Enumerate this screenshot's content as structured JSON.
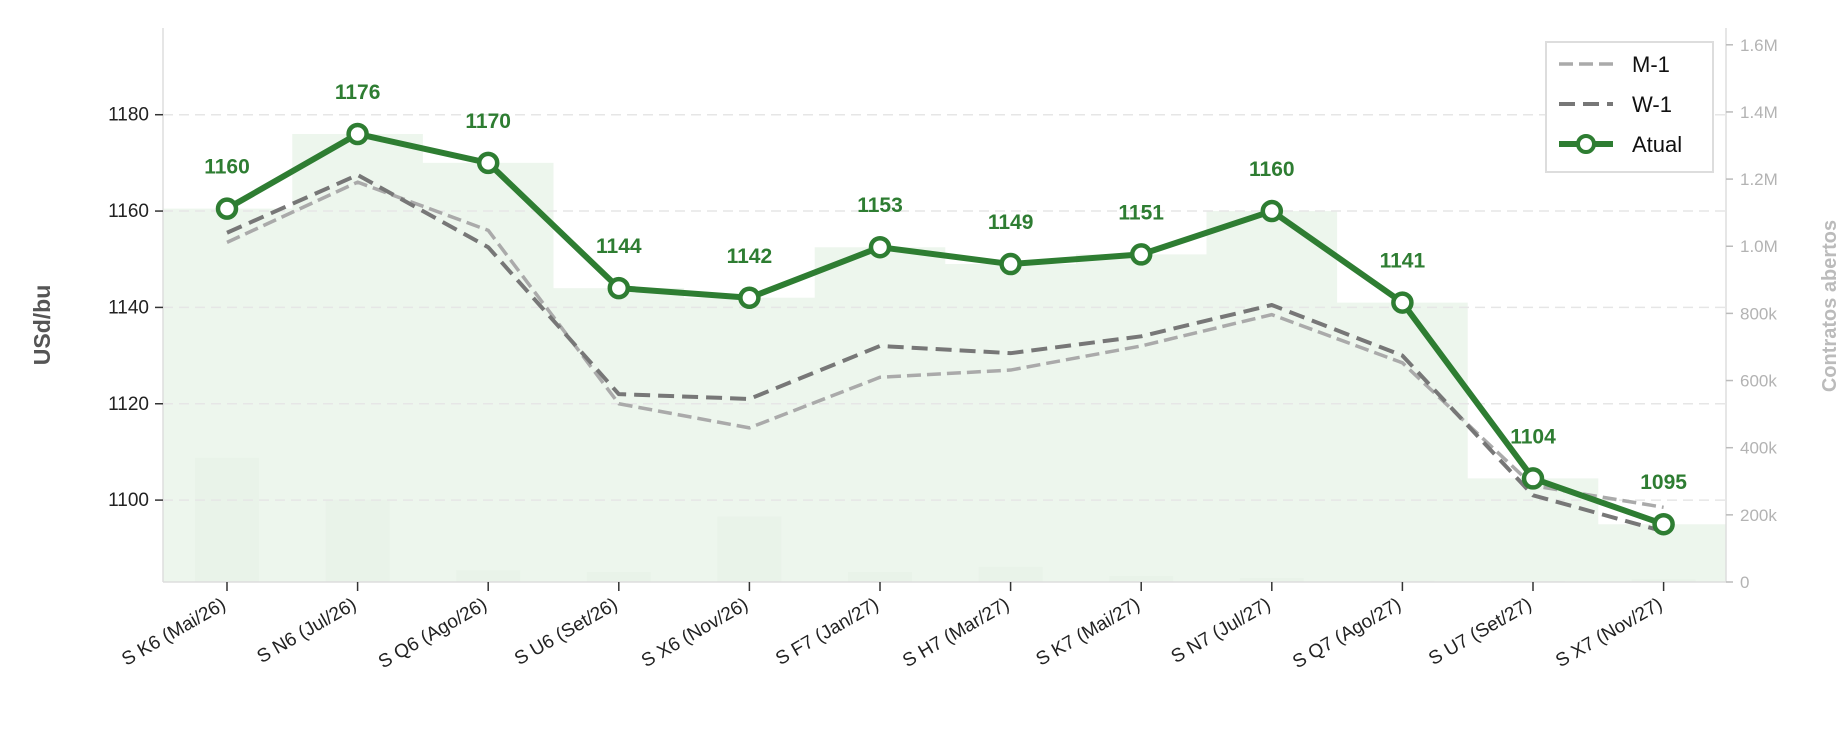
{
  "chart_data": {
    "type": "line",
    "categories": [
      "S K6 (Mai/26)",
      "S N6 (Jul/26)",
      "S Q6 (Ago/26)",
      "S U6 (Set/26)",
      "S X6 (Nov/26)",
      "S F7 (Jan/27)",
      "S H7 (Mar/27)",
      "S K7 (Mai/27)",
      "S N7 (Jul/27)",
      "S Q7 (Ago/27)",
      "S U7 (Set/27)",
      "S X7 (Nov/27)"
    ],
    "series": [
      {
        "name": "M-1",
        "values": [
          1153.5,
          1166,
          1156,
          1120,
          1115,
          1125.5,
          1127,
          1132,
          1138.5,
          1128.5,
          1103,
          1098.5
        ],
        "color": "#aaaaaa",
        "style": "dashed-thin"
      },
      {
        "name": "W-1",
        "values": [
          1155.5,
          1167.5,
          1152.5,
          1122,
          1121,
          1132,
          1130.5,
          1134,
          1140.5,
          1130,
          1101,
          1093.5
        ],
        "color": "#777777",
        "style": "dashed"
      },
      {
        "name": "Atual",
        "values": [
          1160.5,
          1176,
          1170,
          1144,
          1142,
          1152.5,
          1149,
          1151,
          1160,
          1141,
          1104.5,
          1095
        ],
        "color": "#2e7d32",
        "style": "solid-markers"
      }
    ],
    "data_labels": [
      "1160",
      "1176",
      "1170",
      "1144",
      "1142",
      "1153",
      "1149",
      "1151",
      "1160",
      "1141",
      "1104",
      "1095"
    ],
    "open_interest": {
      "ylabel": "Contratos abertos",
      "values": [
        370000,
        245000,
        35000,
        30000,
        195000,
        30000,
        45000,
        18000,
        12000,
        4000,
        3000,
        8000
      ],
      "color": "#e0e6e0",
      "ylim": [
        0,
        1650000
      ],
      "ticks": [
        0,
        200000,
        400000,
        600000,
        800000,
        1000000,
        1200000,
        1400000,
        1600000
      ],
      "tick_labels": [
        "0",
        "200k",
        "400k",
        "600k",
        "800k",
        "1.0M",
        "1.2M",
        "1.4M",
        "1.6M"
      ]
    },
    "ylabel": "USd/bu",
    "xlabel": "",
    "ylim": [
      1083,
      1198
    ],
    "yticks": [
      1100,
      1120,
      1140,
      1160,
      1180
    ],
    "grid": true,
    "legend_position": "top-right",
    "area_fill_color": "#eaf5ea"
  }
}
